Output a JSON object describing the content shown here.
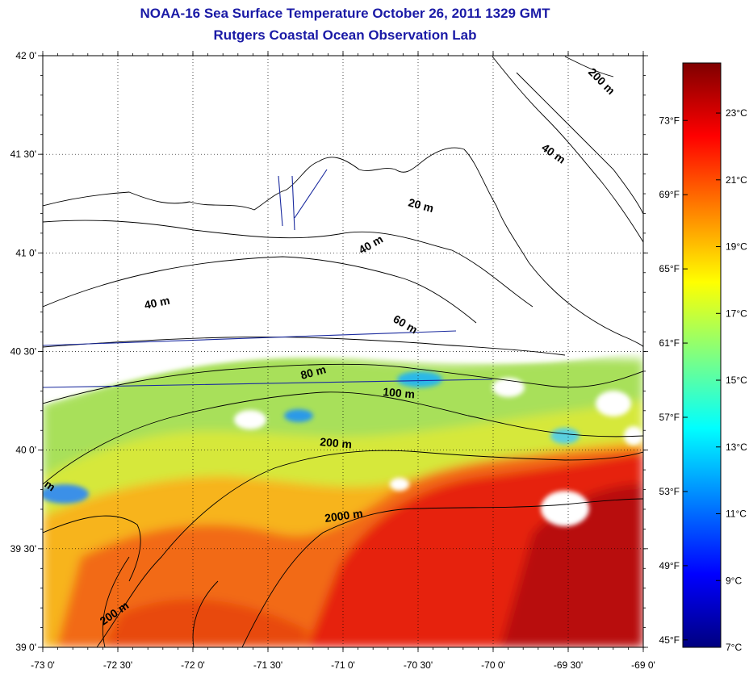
{
  "title": "NOAA-16 Sea Surface Temperature October 26, 2011 1329 GMT",
  "subtitle": "Rutgers Coastal Ocean Observation Lab",
  "map": {
    "lat_labels": [
      "42 0'",
      "41 30'",
      "41 0'",
      "40 30'",
      "40 0'",
      "39 30'",
      "39 0'"
    ],
    "lon_labels": [
      "-73 0'",
      "-72 30'",
      "-72 0'",
      "-71 30'",
      "-71 0'",
      "-70 30'",
      "-70 0'",
      "-69 30'",
      "-69 0'"
    ],
    "lat_range": [
      39.0,
      42.0
    ],
    "lon_range": [
      -73.0,
      -69.0
    ],
    "grid": "dotted",
    "contour_labels": [
      "200 m",
      "40 m",
      "20 m",
      "40 m",
      "40 m",
      "60 m",
      "80 m",
      "100 m",
      "200 m",
      "2000 m",
      "200 m",
      "m"
    ]
  },
  "colorbar": {
    "celsius_labels": [
      "23°C",
      "21°C",
      "19°C",
      "17°C",
      "15°C",
      "13°C",
      "11°C",
      "9°C",
      "7°C"
    ],
    "fahrenheit_labels": [
      "73°F",
      "69°F",
      "65°F",
      "61°F",
      "57°F",
      "53°F",
      "49°F",
      "45°F"
    ],
    "range_celsius": [
      7,
      24.5
    ],
    "colors": [
      "#00007f",
      "#0000ff",
      "#0080ff",
      "#00ffff",
      "#80ff80",
      "#ffff00",
      "#ff8000",
      "#ff0000",
      "#7f0000"
    ]
  }
}
